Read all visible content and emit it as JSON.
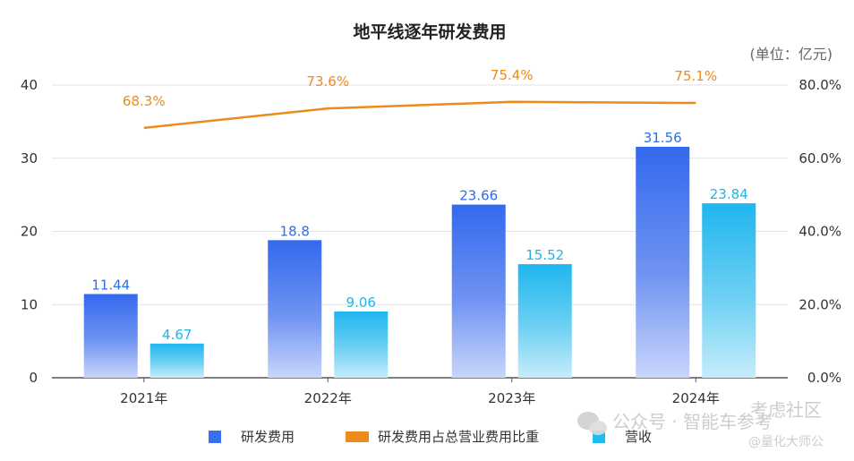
{
  "chart_data": {
    "type": "bar",
    "title": "地平线逐年研发费用",
    "unit_note": "(单位：亿元)",
    "categories": [
      "2021年",
      "2022年",
      "2023年",
      "2024年"
    ],
    "series": [
      {
        "name": "研发费用",
        "kind": "bar",
        "axis": "left",
        "values": [
          11.44,
          18.8,
          23.66,
          31.56
        ],
        "labels": [
          "11.44",
          "18.8",
          "23.66",
          "31.56"
        ],
        "color": "#3a6ff0"
      },
      {
        "name": "研发费用占总营业费用比重",
        "kind": "line",
        "axis": "right",
        "values": [
          68.3,
          73.6,
          75.4,
          75.1
        ],
        "labels": [
          "68.3%",
          "73.6%",
          "75.4%",
          "75.1%"
        ],
        "color": "#ec8a1c"
      },
      {
        "name": "营收",
        "kind": "bar",
        "axis": "left",
        "values": [
          4.67,
          9.06,
          15.52,
          23.84
        ],
        "labels": [
          "4.67",
          "9.06",
          "15.52",
          "23.84"
        ],
        "color": "#1fbcef"
      }
    ],
    "y_left": {
      "range": [
        0,
        40
      ],
      "ticks": [
        0,
        10,
        20,
        30,
        40
      ],
      "tick_labels": [
        "0",
        "10",
        "20",
        "30",
        "40"
      ]
    },
    "y_right": {
      "range": [
        0,
        80
      ],
      "ticks": [
        0,
        20,
        40,
        60,
        80
      ],
      "tick_labels": [
        "0.0%",
        "20.0%",
        "40.0%",
        "60.0%",
        "80.0%"
      ]
    },
    "grid": true,
    "legend_position": "bottom"
  },
  "watermark": {
    "line1": "公众号 · 智能车参考",
    "line2": "@量化大师公",
    "corner": "考虑社区"
  }
}
